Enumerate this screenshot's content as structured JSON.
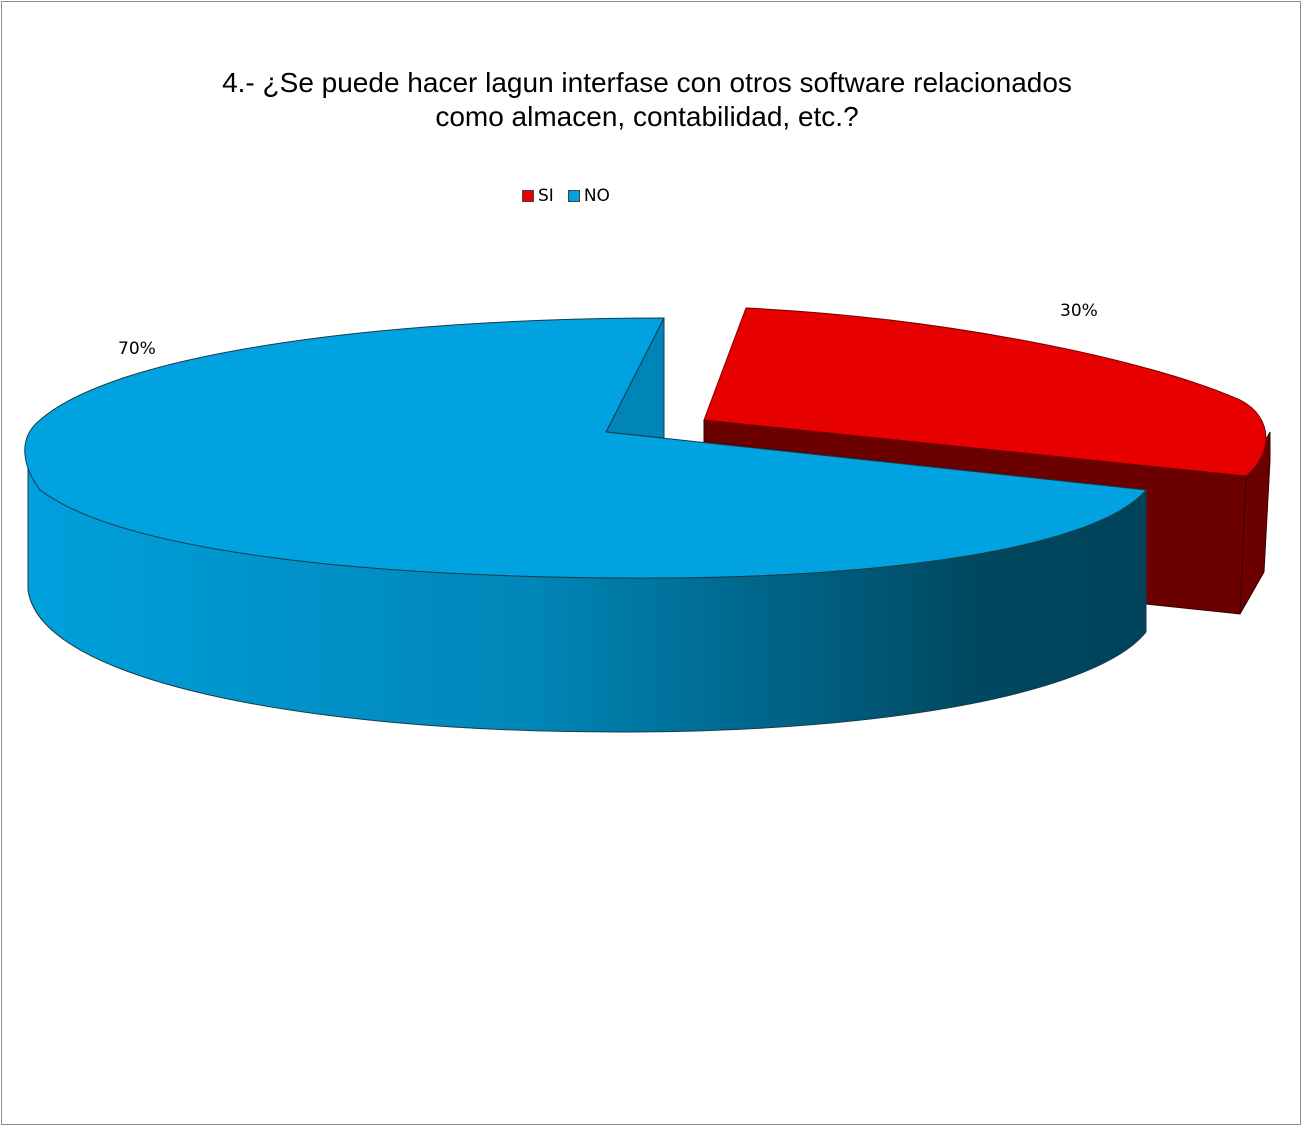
{
  "chart_data": {
    "type": "pie",
    "title_line1": "4.- ¿Se puede hacer lagun interfase con otros software relacionados",
    "title_line2": "como almacen, contabilidad, etc.?",
    "legend_position": "top",
    "categories": [
      "SI",
      "NO"
    ],
    "values": [
      30,
      70
    ],
    "data_labels": [
      "30%",
      "70%"
    ],
    "colors": {
      "SI": "#e60000",
      "NO": "#00a2e0"
    },
    "style": "3d-exploded"
  }
}
